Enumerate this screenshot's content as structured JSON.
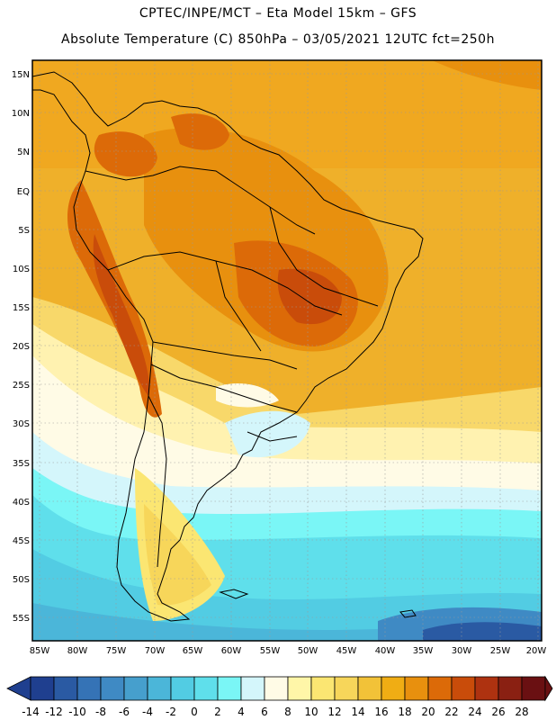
{
  "header": {
    "line1": "CPTEC/INPE/MCT –  Eta Model 15km – GFS",
    "line2": "Absolute Temperature (C) 850hPa – 03/05/2021 12UTC fct=250h"
  },
  "map": {
    "region": "South America",
    "lat_labels": [
      "15N",
      "10N",
      "5N",
      "EQ",
      "5S",
      "10S",
      "15S",
      "20S",
      "25S",
      "30S",
      "35S",
      "40S",
      "45S",
      "50S",
      "55S"
    ],
    "lon_labels": [
      "85W",
      "80W",
      "75W",
      "70W",
      "65W",
      "60W",
      "55W",
      "50W",
      "45W",
      "40W",
      "35W",
      "30W",
      "25W",
      "20W"
    ]
  },
  "colorbar": {
    "labels": [
      "-14",
      "-12",
      "-10",
      "-8",
      "-6",
      "-4",
      "-2",
      "0",
      "2",
      "4",
      "6",
      "8",
      "10",
      "12",
      "14",
      "16",
      "18",
      "20",
      "22",
      "24",
      "26",
      "28"
    ],
    "colors": [
      "#1f3f8f",
      "#2a5aa3",
      "#3573b6",
      "#3f8ac4",
      "#469fcd",
      "#4bb6d9",
      "#52cce3",
      "#5fdfeb",
      "#7af6f6",
      "#d4f6fb",
      "#fffbe6",
      "#fff6a8",
      "#fbe672",
      "#f7d65a",
      "#f2c238",
      "#f0ad14",
      "#e8900e",
      "#dc6a08",
      "#c94c0a",
      "#ae3210",
      "#8a2012",
      "#6a1012"
    ]
  }
}
